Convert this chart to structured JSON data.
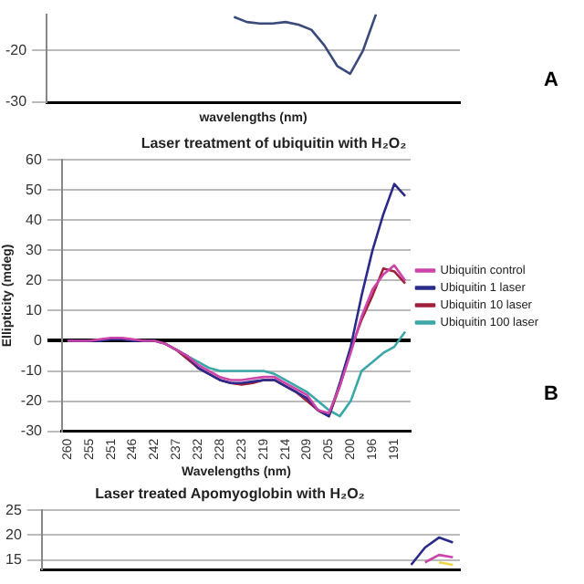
{
  "chart_data": [
    {
      "type": "line",
      "xlabel": "wavelengths (nm)",
      "annotations": [
        "A"
      ],
      "categories": [
        null,
        null,
        null,
        null,
        null,
        null,
        null,
        null,
        null,
        null,
        null,
        null,
        null,
        null,
        null,
        null,
        null,
        null,
        null,
        null,
        null,
        null,
        null,
        null,
        null,
        null,
        null,
        null,
        null,
        null,
        null,
        null
      ],
      "series": [
        {
          "color": "#3a4a7a",
          "values": [
            null,
            null,
            null,
            null,
            null,
            null,
            null,
            null,
            null,
            null,
            null,
            null,
            null,
            null,
            -13.5,
            -14.5,
            -14.8,
            -14.8,
            -14.5,
            -15,
            -16,
            -19,
            -23,
            -24.5,
            -20,
            -13,
            null,
            null,
            null,
            null,
            null,
            null
          ]
        }
      ],
      "ylim": [
        -30,
        -13
      ],
      "yticks": [
        -30,
        -20
      ],
      "grid": "y",
      "legend": false,
      "tick_labels": "y",
      "marker": "none"
    },
    {
      "type": "line",
      "title": "Laser treatment of ubiquitin with H₂O₂",
      "xlabel": "Wavelengths (nm)",
      "ylabel": "Ellipticity (mdeg)",
      "annotations": [
        "B"
      ],
      "categories": [
        "260",
        null,
        "255",
        null,
        "251",
        null,
        "246",
        null,
        "242",
        null,
        "237",
        null,
        "232",
        null,
        "228",
        null,
        "223",
        null,
        "219",
        null,
        "214",
        null,
        "209",
        null,
        "205",
        null,
        "200",
        null,
        "196",
        null,
        "191",
        null
      ],
      "series": [
        {
          "name": "Ubiquitin control",
          "color": "#cc44aa",
          "values": [
            0,
            0,
            0,
            0.5,
            1,
            1,
            0.5,
            0,
            0,
            -1,
            -3,
            -5,
            -8,
            -10,
            -12,
            -13,
            -13,
            -12.5,
            -12,
            -12,
            -14,
            -16,
            -18,
            -23,
            -24,
            -15,
            -4,
            8,
            17,
            22,
            25,
            20
          ]
        },
        {
          "name": "Ubiquitin 1 laser",
          "color": "#2a2a8a",
          "values": [
            0,
            0,
            0,
            0,
            0.5,
            0.5,
            0,
            0,
            0,
            -1,
            -3,
            -5,
            -9,
            -11,
            -13,
            -14,
            -14,
            -13.5,
            -13,
            -13,
            -15,
            -17,
            -19,
            -23,
            -25,
            -14,
            -2,
            15,
            30,
            42,
            52,
            48
          ]
        },
        {
          "name": "Ubiquitin 10 laser",
          "color": "#a0203a",
          "values": [
            null,
            null,
            null,
            null,
            null,
            null,
            null,
            null,
            null,
            -1,
            -3,
            -6,
            -9,
            -11,
            -13,
            -14,
            -14.5,
            -14,
            -13,
            -13,
            -15,
            -17,
            -20,
            -23,
            -25,
            -15,
            -3,
            7,
            15,
            24,
            23,
            19
          ]
        },
        {
          "name": "Ubiquitin 100 laser",
          "color": "#3aa8a8",
          "values": [
            null,
            null,
            null,
            null,
            null,
            null,
            null,
            null,
            null,
            null,
            -3,
            -5,
            -7,
            -9,
            -10,
            -10,
            -10,
            -10,
            -10,
            -11,
            -13,
            -15,
            -17,
            -20,
            -23,
            -25,
            -20,
            -10,
            -7,
            -4,
            -2,
            3
          ]
        }
      ],
      "ylim": [
        -30,
        60
      ],
      "yticks": [
        -30,
        -20,
        -10,
        0,
        10,
        20,
        30,
        40,
        50,
        60
      ],
      "grid": "y",
      "legend": "right",
      "marker": "none"
    },
    {
      "type": "line",
      "title": "Laser treated Apomyoglobin with H₂O₂",
      "categories": [
        null,
        null,
        null,
        null,
        null,
        null,
        null,
        null,
        null,
        null,
        null,
        null,
        null,
        null,
        null,
        null,
        null,
        null,
        null,
        null,
        null,
        null,
        null,
        null,
        null,
        null,
        null,
        null,
        null,
        null
      ],
      "series": [
        {
          "color": "#2a2a8a",
          "values": [
            null,
            null,
            null,
            null,
            null,
            null,
            null,
            null,
            null,
            null,
            null,
            null,
            null,
            null,
            null,
            null,
            null,
            null,
            null,
            null,
            null,
            null,
            null,
            null,
            null,
            null,
            14,
            17.5,
            19.5,
            18.5
          ]
        },
        {
          "color": "#cc44aa",
          "values": [
            null,
            null,
            null,
            null,
            null,
            null,
            null,
            null,
            null,
            null,
            null,
            null,
            null,
            null,
            null,
            null,
            null,
            null,
            null,
            null,
            null,
            null,
            null,
            null,
            null,
            null,
            null,
            14.5,
            16,
            15.5
          ]
        },
        {
          "color": "#e8d84a",
          "values": [
            null,
            null,
            null,
            null,
            null,
            null,
            null,
            null,
            null,
            null,
            null,
            null,
            null,
            null,
            null,
            null,
            null,
            null,
            null,
            null,
            null,
            null,
            null,
            null,
            null,
            null,
            null,
            null,
            14.5,
            14
          ]
        }
      ],
      "ylim": [
        13,
        25
      ],
      "yticks": [
        15,
        20,
        25
      ],
      "grid": "y",
      "legend": false,
      "tick_labels": "y",
      "marker": "none"
    }
  ]
}
